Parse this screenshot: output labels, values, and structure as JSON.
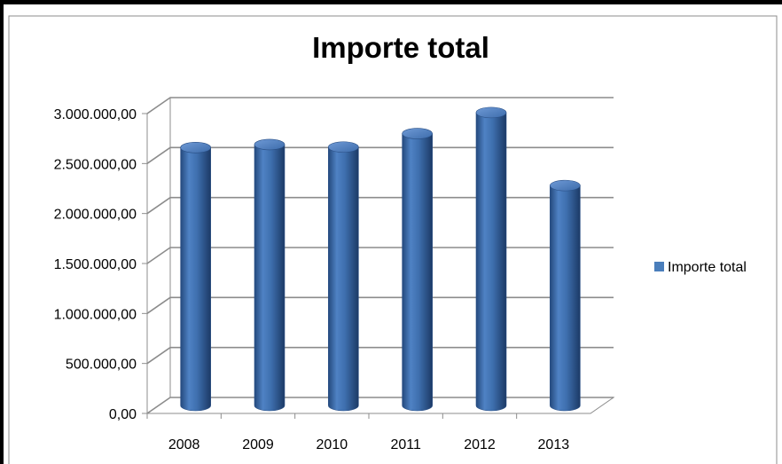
{
  "chart_data": {
    "type": "bar",
    "title": "Importe total",
    "categories": [
      "2008",
      "2009",
      "2010",
      "2011",
      "2012",
      "2013"
    ],
    "series": [
      {
        "name": "Importe total",
        "values": [
          2580000,
          2610000,
          2585000,
          2720000,
          2930000,
          2200000
        ],
        "color": "#4A7EBB"
      }
    ],
    "ylim": [
      0,
      3000000
    ],
    "yticks": [
      0,
      500000,
      1000000,
      1500000,
      2000000,
      2500000,
      3000000
    ],
    "ytick_labels": [
      "0,00",
      "500.000,00",
      "1.000.000,00",
      "1.500.000,00",
      "2.000.000,00",
      "2.500.000,00",
      "3.000.000,00"
    ],
    "xlabel": "",
    "ylabel": "",
    "grid": true,
    "legend_position": "right",
    "style": "3d-cylinder"
  }
}
